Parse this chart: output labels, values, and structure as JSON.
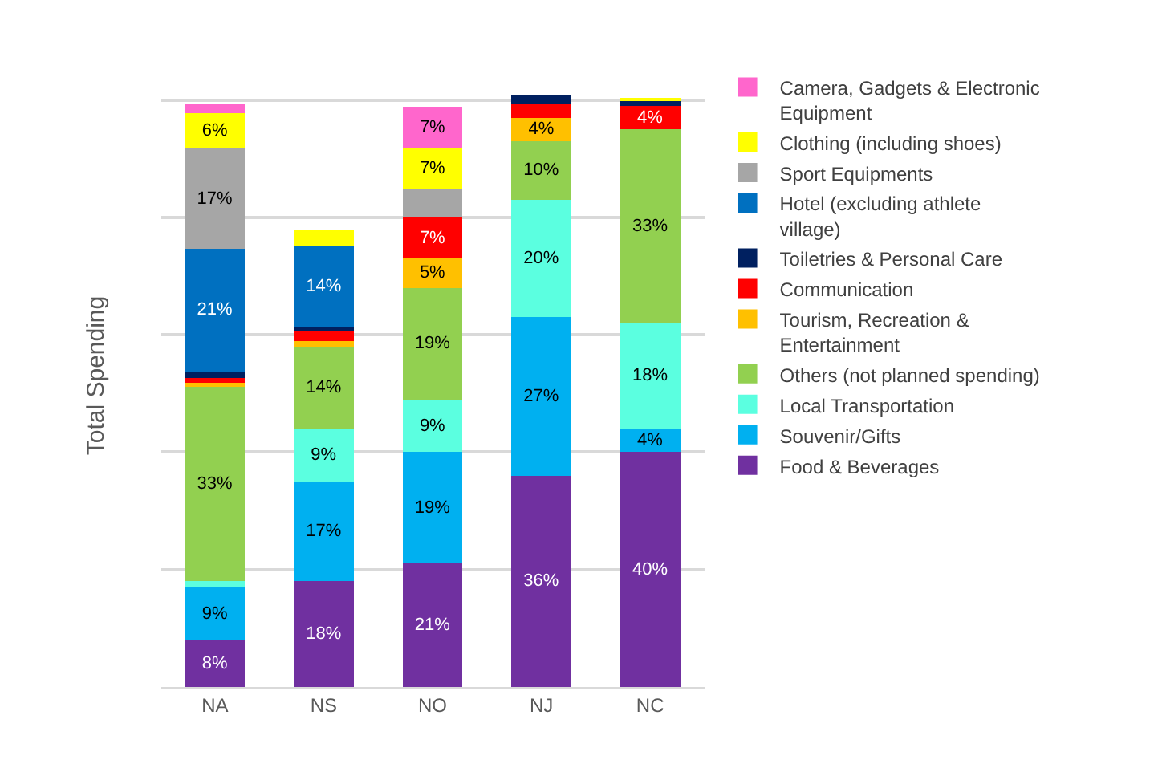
{
  "chart_data": {
    "type": "bar",
    "stacked": true,
    "ylabel": "Total Spending",
    "categories": [
      "NA",
      "NS",
      "NO",
      "NJ",
      "NC"
    ],
    "tick_labels": "x",
    "grid": "y",
    "legend": "right",
    "series": [
      {
        "name": "Food & Beverages",
        "color": "#7030a0",
        "values": [
          8,
          18,
          21,
          36,
          40
        ],
        "value_labels": [
          "8%",
          "18%",
          "21%",
          "36%",
          "40%"
        ]
      },
      {
        "name": "Souvenir/Gifts",
        "color": "#00b0f0",
        "values": [
          9,
          17,
          19,
          27,
          4
        ],
        "value_labels": [
          "9%",
          "17%",
          "19%",
          "27%",
          "4%"
        ]
      },
      {
        "name": "Local Transportation",
        "color": "#5bffe0",
        "values": [
          1.1,
          9,
          9,
          20,
          18
        ],
        "value_labels": [
          null,
          "9%",
          "9%",
          "20%",
          "18%"
        ]
      },
      {
        "name": "Others (not planned spending)",
        "color": "#92d050",
        "values": [
          33,
          14,
          19,
          10,
          33
        ],
        "value_labels": [
          "33%",
          "14%",
          "19%",
          "10%",
          "33%"
        ]
      },
      {
        "name": "Tourism, Recreation & Entertainment",
        "color": "#ffc000",
        "values": [
          0.7,
          0.9,
          5,
          4,
          0
        ],
        "value_labels": [
          null,
          null,
          "5%",
          "4%",
          null
        ]
      },
      {
        "name": "Communication",
        "color": "#ff0000",
        "values": [
          0.8,
          1.9,
          7,
          2.3,
          4
        ],
        "value_labels": [
          null,
          null,
          "7%",
          null,
          "4%"
        ]
      },
      {
        "name": "Toiletries & Personal Care",
        "color": "#002060",
        "values": [
          1.1,
          0.4,
          0,
          1.5,
          1.0
        ],
        "value_labels": [
          null,
          null,
          null,
          null,
          null
        ]
      },
      {
        "name": "Hotel (excluding athlete village)",
        "color": "#0070c0",
        "values": [
          21,
          14,
          0,
          0,
          0
        ],
        "value_labels": [
          "21%",
          "14%",
          null,
          null,
          null
        ]
      },
      {
        "name": "Sport Equipments",
        "color": "#a6a6a6",
        "values": [
          17,
          0,
          4.8,
          0,
          0
        ],
        "value_labels": [
          "17%",
          null,
          null,
          null,
          null
        ]
      },
      {
        "name": "Clothing (including shoes)",
        "color": "#ffff00",
        "values": [
          6,
          2.7,
          7,
          0,
          0.4
        ],
        "value_labels": [
          "6%",
          null,
          "7%",
          null,
          null
        ]
      },
      {
        "name": "Camera, Gadgets & Electronic Equipment",
        "color": "#ff66cc",
        "values": [
          1.7,
          0,
          7,
          0,
          0
        ],
        "value_labels": [
          null,
          null,
          "7%",
          null,
          null
        ]
      }
    ]
  }
}
